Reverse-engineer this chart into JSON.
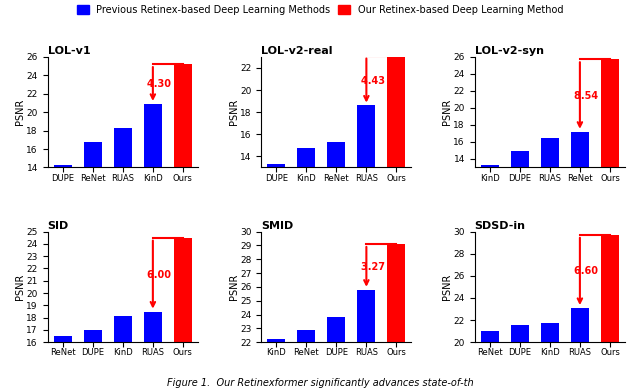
{
  "subplots": [
    {
      "title": "LOL-v1",
      "categories": [
        "DUPE",
        "ReNet",
        "RUAS",
        "KinD",
        "Ours"
      ],
      "values": [
        14.3,
        16.8,
        18.3,
        20.9,
        25.2
      ],
      "ylim": [
        14,
        26
      ],
      "yticks": [
        14,
        16,
        18,
        20,
        22,
        24,
        26
      ],
      "diff_label": "4.30 dB",
      "diff_from": 20.9,
      "diff_to": 25.2
    },
    {
      "title": "LOL-v2-real",
      "categories": [
        "DUPE",
        "KinD",
        "ReNet",
        "RUAS",
        "Ours"
      ],
      "values": [
        13.3,
        14.8,
        15.3,
        18.6,
        23.1
      ],
      "ylim": [
        13,
        23
      ],
      "yticks": [
        14,
        16,
        18,
        20,
        22
      ],
      "diff_label": "4.43 dB",
      "diff_from": 18.6,
      "diff_to": 23.1
    },
    {
      "title": "LOL-v2-syn",
      "categories": [
        "KinD",
        "DUPE",
        "RUAS",
        "ReNet",
        "Ours"
      ],
      "values": [
        13.3,
        14.9,
        16.5,
        17.2,
        25.7
      ],
      "ylim": [
        13,
        26
      ],
      "yticks": [
        14,
        16,
        18,
        20,
        22,
        24,
        26
      ],
      "diff_label": "8.54 dB",
      "diff_from": 17.2,
      "diff_to": 25.7
    },
    {
      "title": "SID",
      "categories": [
        "ReNet",
        "DUPE",
        "KinD",
        "RUAS",
        "Ours"
      ],
      "values": [
        16.5,
        17.0,
        18.1,
        18.5,
        24.5
      ],
      "ylim": [
        16,
        25
      ],
      "yticks": [
        16,
        17,
        18,
        19,
        20,
        21,
        22,
        23,
        24,
        25
      ],
      "diff_label": "6.00 dB",
      "diff_from": 18.5,
      "diff_to": 24.5
    },
    {
      "title": "SMID",
      "categories": [
        "KinD",
        "ReNet",
        "DUPE",
        "RUAS",
        "Ours"
      ],
      "values": [
        22.2,
        22.9,
        23.8,
        25.8,
        29.1
      ],
      "ylim": [
        22,
        30
      ],
      "yticks": [
        22,
        23,
        24,
        25,
        26,
        27,
        28,
        29,
        30
      ],
      "diff_label": "3.27 dB",
      "diff_from": 25.8,
      "diff_to": 29.1
    },
    {
      "title": "SDSD-in",
      "categories": [
        "ReNet",
        "DUPE",
        "KinD",
        "RUAS",
        "Ours"
      ],
      "values": [
        21.0,
        21.6,
        21.7,
        23.1,
        29.7
      ],
      "ylim": [
        20,
        30
      ],
      "yticks": [
        20,
        22,
        24,
        26,
        28,
        30
      ],
      "diff_label": "6.60 dB",
      "diff_from": 23.1,
      "diff_to": 29.7
    }
  ],
  "legend_blue_label": "Previous Retinex-based Deep Learning Methods",
  "legend_red_label": "Our Retinex-based Deep Learning Method",
  "ylabel": "PSNR",
  "figure_caption": "Figure 1.  Our Retinexformer significantly advances state-of-th",
  "blue_color": "#0000FF",
  "red_color": "#FF0000",
  "bg_color": "#FFFFFF"
}
